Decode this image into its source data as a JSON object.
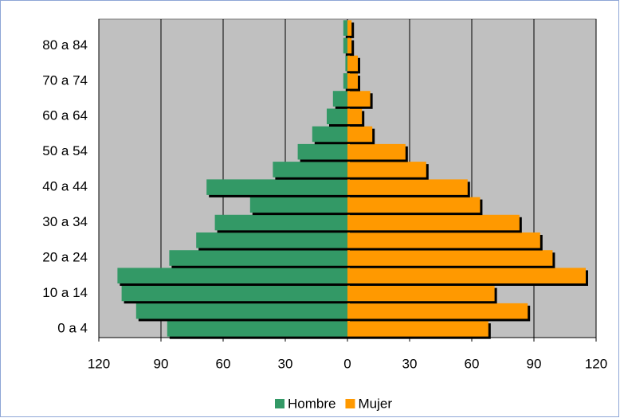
{
  "chart_data": {
    "type": "bar",
    "orientation": "horizontal",
    "stacked": false,
    "categories": [
      "0 a 4",
      null,
      "10 a 14",
      null,
      "20 a 24",
      null,
      "30 a 34",
      null,
      "40 a 44",
      null,
      "50 a 54",
      null,
      "60 a 64",
      null,
      "70 a 74",
      null,
      "80 a 84",
      null
    ],
    "series": [
      {
        "name": "Hombre",
        "color": "#339966",
        "values": [
          -87,
          -102,
          -109,
          -111,
          -86,
          -73,
          -64,
          -47,
          -68,
          -36,
          -24,
          -17,
          -10,
          -7,
          -2,
          -1,
          -2,
          -2
        ]
      },
      {
        "name": "Mujer",
        "color": "#ff9900",
        "values": [
          68,
          87,
          71,
          115,
          99,
          93,
          83,
          64,
          58,
          38,
          28,
          12,
          7,
          11,
          5,
          5,
          2,
          2
        ]
      }
    ],
    "xlim": [
      -120,
      120
    ],
    "xticks": [
      {
        "value": -120,
        "label": "120"
      },
      {
        "value": -90,
        "label": "90"
      },
      {
        "value": -60,
        "label": "60"
      },
      {
        "value": -30,
        "label": "30"
      },
      0,
      30,
      60,
      90,
      120
    ],
    "grid": true,
    "plot_background": "#c0c0c0",
    "legend": "bottom"
  }
}
